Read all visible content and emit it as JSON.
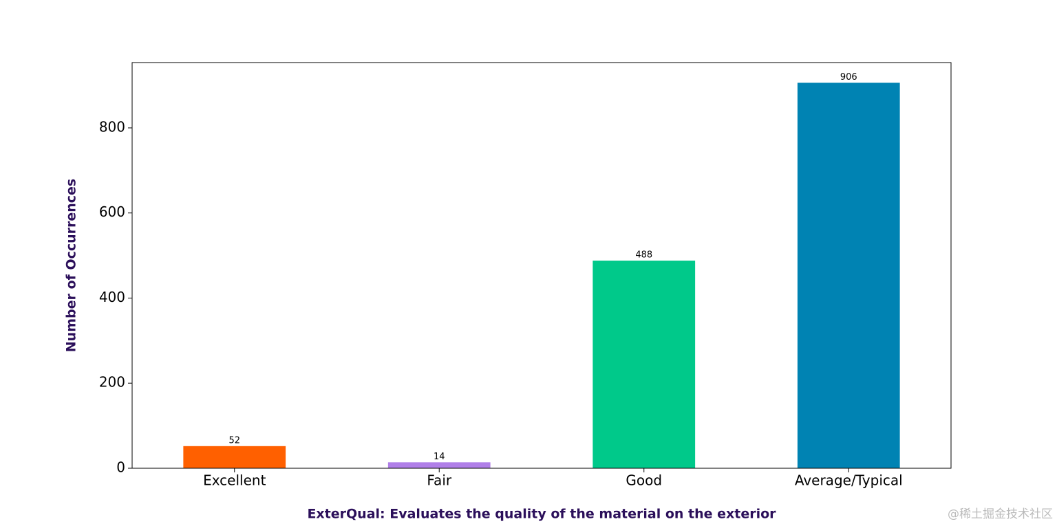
{
  "chart_data": {
    "type": "bar",
    "xlabel": "ExterQual: Evaluates the quality of the material on the exterior",
    "ylabel": "Number of Occurrences",
    "categories": [
      "Excellent",
      "Fair",
      "Good",
      "Average/Typical"
    ],
    "values": [
      52,
      14,
      488,
      906
    ],
    "colors": [
      "#ff6000",
      "#b07fe8",
      "#00c98a",
      "#0083b3"
    ],
    "ylim": [
      0,
      953.5
    ],
    "yticks": [
      0,
      200,
      400,
      600,
      800
    ],
    "grid": false,
    "watermark": "@稀土掘金技术社区"
  }
}
